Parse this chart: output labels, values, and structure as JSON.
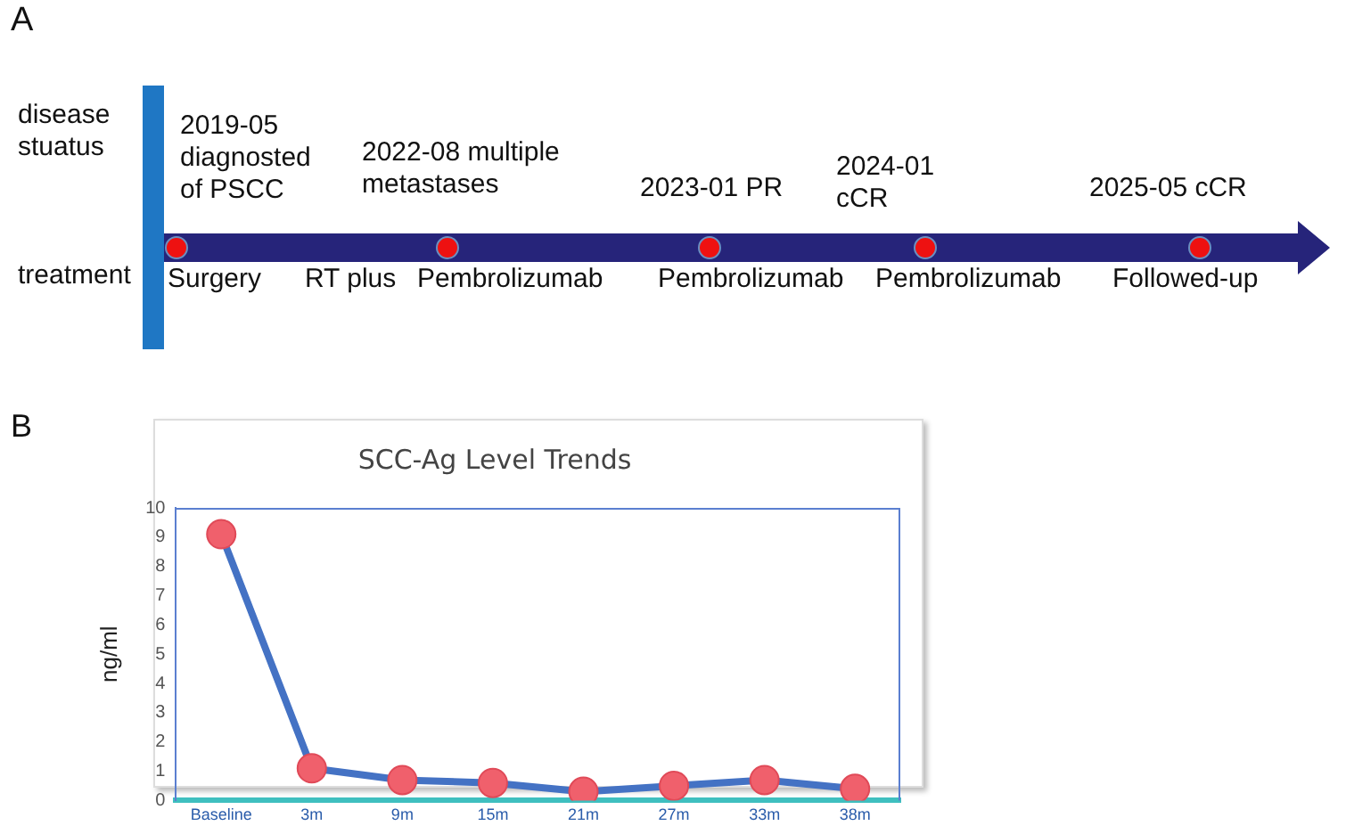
{
  "chart_data": [
    {
      "type": "other",
      "title": "A",
      "annotations": [
        "disease stuatus",
        "treatment",
        "2019-05 diagnosted of PSCC",
        "2022-08 multiple metastases",
        "2023-01 PR",
        "2024-01 cCR",
        "2025-05 cCR",
        "Surgery",
        "RT plus",
        "Pembrolizumab",
        "Pembrolizumab",
        "Pembrolizumab",
        "Followed-up"
      ]
    },
    {
      "type": "line",
      "title": "SCC-Ag Level Trends",
      "ylabel": "ng/ml",
      "annotations": [
        "B"
      ],
      "categories": [
        "Baseline",
        "3m",
        "9m",
        "15m",
        "21m",
        "27m",
        "33m",
        "38m"
      ],
      "series": [
        {
          "color": "#4472c4",
          "values": [
            9.1,
            1.1,
            0.7,
            0.6,
            0.3,
            0.5,
            0.7,
            0.4
          ]
        }
      ],
      "ylim": [
        0,
        10
      ],
      "yticks": [
        0,
        1,
        2,
        3,
        4,
        5,
        6,
        7,
        8,
        9,
        10
      ],
      "grid": false,
      "marker": "circle",
      "line_style": "solid",
      "legend": false
    }
  ]
}
